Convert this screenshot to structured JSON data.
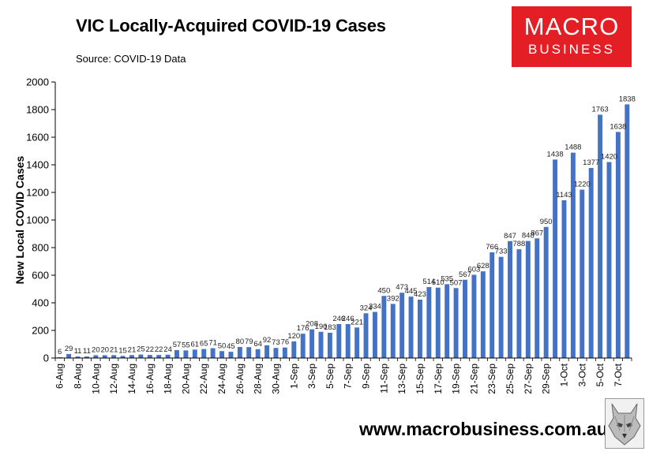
{
  "header": {
    "title": "VIC Locally-Acquired COVID-19 Cases",
    "subtitle": "Source: COVID-19 Data"
  },
  "logo": {
    "line1": "MACRO",
    "line2": "BUSINESS"
  },
  "footer": {
    "url": "www.macrobusiness.com.au"
  },
  "colors": {
    "bar": "#4472c4",
    "axis": "#000000",
    "logo_bg": "#e31e24"
  },
  "chart_data": {
    "type": "bar",
    "title": "VIC Locally-Acquired COVID-19 Cases",
    "xlabel": "",
    "ylabel": "New Local COVID Cases",
    "ylim": [
      0,
      2000
    ],
    "yticks": [
      0,
      200,
      400,
      600,
      800,
      1000,
      1200,
      1400,
      1600,
      1800,
      2000
    ],
    "categories": [
      "6-Aug",
      "7-Aug",
      "8-Aug",
      "9-Aug",
      "10-Aug",
      "11-Aug",
      "12-Aug",
      "13-Aug",
      "14-Aug",
      "15-Aug",
      "16-Aug",
      "17-Aug",
      "18-Aug",
      "19-Aug",
      "20-Aug",
      "21-Aug",
      "22-Aug",
      "23-Aug",
      "24-Aug",
      "25-Aug",
      "26-Aug",
      "27-Aug",
      "28-Aug",
      "29-Aug",
      "30-Aug",
      "31-Aug",
      "1-Sep",
      "2-Sep",
      "3-Sep",
      "4-Sep",
      "5-Sep",
      "6-Sep",
      "7-Sep",
      "8-Sep",
      "9-Sep",
      "10-Sep",
      "11-Sep",
      "12-Sep",
      "13-Sep",
      "14-Sep",
      "15-Sep",
      "16-Sep",
      "17-Sep",
      "18-Sep",
      "19-Sep",
      "20-Sep",
      "21-Sep",
      "22-Sep",
      "23-Sep",
      "24-Sep",
      "25-Sep",
      "26-Sep",
      "27-Sep",
      "28-Sep",
      "29-Sep",
      "30-Sep",
      "1-Oct",
      "2-Oct",
      "3-Oct",
      "4-Oct",
      "5-Oct",
      "6-Oct",
      "7-Oct",
      "8-Oct"
    ],
    "tick_labels": [
      "6-Aug",
      "8-Aug",
      "10-Aug",
      "12-Aug",
      "14-Aug",
      "16-Aug",
      "18-Aug",
      "20-Aug",
      "22-Aug",
      "24-Aug",
      "26-Aug",
      "28-Aug",
      "30-Aug",
      "1-Sep",
      "3-Sep",
      "5-Sep",
      "7-Sep",
      "9-Sep",
      "11-Sep",
      "13-Sep",
      "15-Sep",
      "17-Sep",
      "19-Sep",
      "21-Sep",
      "23-Sep",
      "25-Sep",
      "27-Sep",
      "29-Sep",
      "1-Oct",
      "3-Oct",
      "5-Oct",
      "7-Oct"
    ],
    "values": [
      6,
      29,
      11,
      11,
      20,
      20,
      21,
      15,
      21,
      25,
      22,
      22,
      24,
      57,
      55,
      61,
      65,
      71,
      50,
      45,
      80,
      79,
      64,
      92,
      73,
      76,
      120,
      176,
      208,
      190,
      183,
      246,
      246,
      221,
      324,
      334,
      450,
      392,
      473,
      445,
      423,
      514,
      510,
      535,
      507,
      567,
      603,
      628,
      766,
      733,
      847,
      788,
      848,
      867,
      950,
      1438,
      1143,
      1488,
      1220,
      1377,
      1763,
      1420,
      1638,
      1838
    ],
    "series": [
      {
        "name": "New Local COVID Cases"
      }
    ]
  }
}
